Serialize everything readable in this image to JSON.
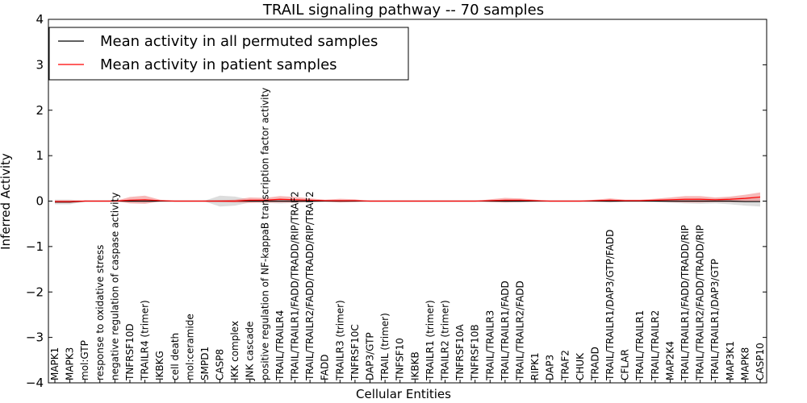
{
  "chart_data": {
    "type": "line",
    "title": "TRAIL signaling pathway -- 70 samples",
    "xlabel": "Cellular Entities",
    "ylabel": "Inferred Activity",
    "ylim": [
      -4,
      4
    ],
    "yticks": [
      4,
      3,
      2,
      1,
      0,
      -1,
      -2,
      -3,
      -4
    ],
    "ytick_labels": [
      "4",
      "3",
      "2",
      "1",
      "0",
      "−1",
      "−2",
      "−3",
      "−4"
    ],
    "legend_position": "top-left",
    "grid": false,
    "categories": [
      "MAPK1",
      "MAPK3",
      "mol:GTP",
      "response to oxidative stress",
      "negative regulation of caspase activity",
      "TNFRSF10D",
      "TRAILR4 (trimer)",
      "IKBKG",
      "cell death",
      "mol:ceramide",
      "SMPD1",
      "CASP8",
      "IKK complex",
      "JNK cascade",
      "positive regulation of NF-kappaB transcription factor activity",
      "TRAIL/TRAILR4",
      "TRAIL/TRAILR1/FADD/TRADD/RIP/TRAF2",
      "TRAIL/TRAILR2/FADD/TRADD/RIP/TRAF2",
      "FADD",
      "TRAILR3 (trimer)",
      "TNFRSF10C",
      "DAP3/GTP",
      "TRAIL (trimer)",
      "TNFSF10",
      "IKBKB",
      "TRAILR1 (trimer)",
      "TRAILR2 (trimer)",
      "TNFRSF10A",
      "TNFRSF10B",
      "TRAIL/TRAILR3",
      "TRAIL/TRAILR1/FADD",
      "TRAIL/TRAILR2/FADD",
      "RIPK1",
      "DAP3",
      "TRAF2",
      "CHUK",
      "TRADD",
      "TRAIL/TRAILR1/DAP3/GTP/FADD",
      "CFLAR",
      "TRAIL/TRAILR1",
      "TRAIL/TRAILR2",
      "MAP2K4",
      "TRAIL/TRAILR1/FADD/TRADD/RIP",
      "TRAIL/TRAILR2/FADD/TRADD/RIP",
      "TRAIL/TRAILR1/DAP3/GTP",
      "MAP3K1",
      "MAPK8",
      "CASP10"
    ],
    "series": [
      {
        "name": "Mean activity in all permuted samples",
        "color": "#000000",
        "band_color": "#b3b3b3",
        "values": [
          -0.02,
          -0.02,
          0.0,
          0.0,
          0.0,
          0.0,
          0.0,
          0.0,
          0.0,
          0.0,
          0.0,
          0.0,
          0.0,
          0.0,
          0.0,
          0.0,
          0.0,
          0.0,
          0.0,
          0.0,
          0.0,
          0.0,
          0.0,
          0.0,
          0.0,
          0.0,
          0.0,
          0.0,
          0.0,
          0.0,
          0.0,
          0.0,
          0.0,
          0.0,
          0.0,
          0.0,
          0.0,
          0.0,
          0.0,
          0.0,
          0.0,
          0.0,
          0.0,
          0.0,
          0.0,
          0.0,
          -0.01,
          -0.01
        ],
        "band": [
          0.05,
          0.05,
          0.01,
          0.0,
          0.0,
          0.03,
          0.04,
          0.01,
          0.0,
          0.0,
          0.01,
          0.12,
          0.1,
          0.03,
          0.04,
          0.05,
          0.04,
          0.03,
          0.01,
          0.02,
          0.01,
          0.0,
          0.0,
          0.0,
          0.0,
          0.0,
          0.0,
          0.0,
          0.0,
          0.02,
          0.03,
          0.03,
          0.01,
          0.0,
          0.0,
          0.0,
          0.01,
          0.03,
          0.01,
          0.01,
          0.02,
          0.04,
          0.05,
          0.06,
          0.05,
          0.07,
          0.09,
          0.11
        ]
      },
      {
        "name": "Mean activity in patient samples",
        "color": "#ff0000",
        "band_color": "#f08080",
        "values": [
          -0.01,
          -0.01,
          0.0,
          0.0,
          0.0,
          0.02,
          0.03,
          0.01,
          0.0,
          0.0,
          0.0,
          0.0,
          0.0,
          0.02,
          0.02,
          0.04,
          0.03,
          0.02,
          0.01,
          0.01,
          0.01,
          0.0,
          0.0,
          0.0,
          0.0,
          0.0,
          0.0,
          0.0,
          0.0,
          0.01,
          0.02,
          0.02,
          0.01,
          0.0,
          0.0,
          0.0,
          0.01,
          0.02,
          0.01,
          0.01,
          0.02,
          0.03,
          0.04,
          0.04,
          0.03,
          0.04,
          0.06,
          0.09
        ],
        "band": [
          0.03,
          0.03,
          0.01,
          0.0,
          0.0,
          0.07,
          0.09,
          0.02,
          0.0,
          0.0,
          0.01,
          0.02,
          0.03,
          0.06,
          0.05,
          0.07,
          0.06,
          0.04,
          0.02,
          0.04,
          0.03,
          0.0,
          0.0,
          0.0,
          0.0,
          0.0,
          0.0,
          0.0,
          0.0,
          0.03,
          0.05,
          0.04,
          0.02,
          0.0,
          0.0,
          0.0,
          0.02,
          0.04,
          0.02,
          0.02,
          0.03,
          0.05,
          0.07,
          0.07,
          0.05,
          0.06,
          0.08,
          0.1
        ]
      }
    ]
  }
}
